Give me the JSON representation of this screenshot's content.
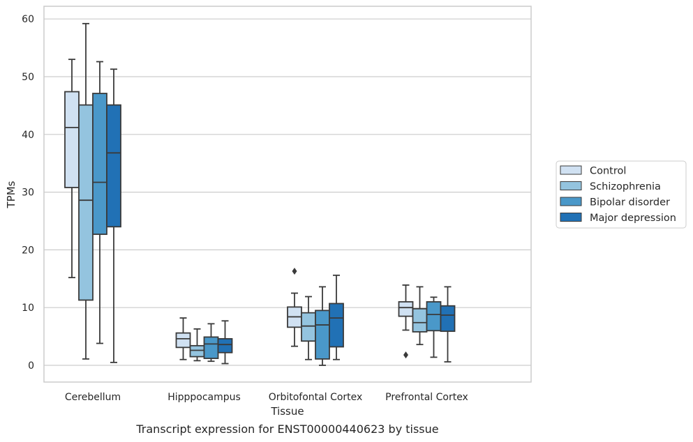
{
  "chart_data": {
    "type": "box",
    "caption": "Transcript expression for ENST00000440623 by tissue",
    "xlabel": "Tissue",
    "ylabel": "TPMs",
    "ylim": [
      -3,
      62
    ],
    "yticks": [
      0,
      10,
      20,
      30,
      40,
      50,
      60
    ],
    "grid": "horizontal",
    "legend_position": "right",
    "categories": [
      "Cerebellum",
      "Hipppocampus",
      "Orbitofontal Cortex",
      "Prefrontal Cortex"
    ],
    "series": [
      {
        "name": "Control",
        "color": "#d0e1f2",
        "boxes": [
          {
            "whisker_low": 15.2,
            "q1": 30.8,
            "median": 41.2,
            "q3": 47.4,
            "whisker_high": 53.0,
            "outliers": []
          },
          {
            "whisker_low": 1.0,
            "q1": 3.1,
            "median": 4.6,
            "q3": 5.6,
            "whisker_high": 8.2,
            "outliers": []
          },
          {
            "whisker_low": 3.3,
            "q1": 6.6,
            "median": 8.4,
            "q3": 10.1,
            "whisker_high": 12.5,
            "outliers": [
              16.3
            ]
          },
          {
            "whisker_low": 6.1,
            "q1": 8.5,
            "median": 10.0,
            "q3": 11.0,
            "whisker_high": 13.9,
            "outliers": [
              1.8
            ]
          }
        ]
      },
      {
        "name": "Schizophrenia",
        "color": "#94c4df",
        "boxes": [
          {
            "whisker_low": 1.1,
            "q1": 11.3,
            "median": 28.6,
            "q3": 45.1,
            "whisker_high": 59.2,
            "outliers": []
          },
          {
            "whisker_low": 0.8,
            "q1": 1.5,
            "median": 2.6,
            "q3": 3.4,
            "whisker_high": 6.3,
            "outliers": []
          },
          {
            "whisker_low": 1.0,
            "q1": 4.2,
            "median": 6.8,
            "q3": 9.1,
            "whisker_high": 11.9,
            "outliers": []
          },
          {
            "whisker_low": 3.6,
            "q1": 5.8,
            "median": 7.4,
            "q3": 9.8,
            "whisker_high": 13.6,
            "outliers": []
          }
        ]
      },
      {
        "name": "Bipolar disorder",
        "color": "#4a98c9",
        "boxes": [
          {
            "whisker_low": 3.8,
            "q1": 22.7,
            "median": 31.7,
            "q3": 47.1,
            "whisker_high": 52.6,
            "outliers": []
          },
          {
            "whisker_low": 0.7,
            "q1": 1.2,
            "median": 3.7,
            "q3": 4.9,
            "whisker_high": 7.2,
            "outliers": []
          },
          {
            "whisker_low": 0.0,
            "q1": 1.1,
            "median": 7.0,
            "q3": 9.5,
            "whisker_high": 13.6,
            "outliers": []
          },
          {
            "whisker_low": 1.4,
            "q1": 6.0,
            "median": 8.8,
            "q3": 11.0,
            "whisker_high": 11.8,
            "outliers": []
          }
        ]
      },
      {
        "name": "Major depression",
        "color": "#2171b5",
        "boxes": [
          {
            "whisker_low": 0.5,
            "q1": 24.0,
            "median": 36.8,
            "q3": 45.1,
            "whisker_high": 51.3,
            "outliers": []
          },
          {
            "whisker_low": 0.3,
            "q1": 2.2,
            "median": 3.6,
            "q3": 4.6,
            "whisker_high": 7.7,
            "outliers": []
          },
          {
            "whisker_low": 1.0,
            "q1": 3.2,
            "median": 8.2,
            "q3": 10.7,
            "whisker_high": 15.6,
            "outliers": []
          },
          {
            "whisker_low": 0.6,
            "q1": 5.9,
            "median": 8.7,
            "q3": 10.3,
            "whisker_high": 13.6,
            "outliers": []
          }
        ]
      }
    ]
  }
}
